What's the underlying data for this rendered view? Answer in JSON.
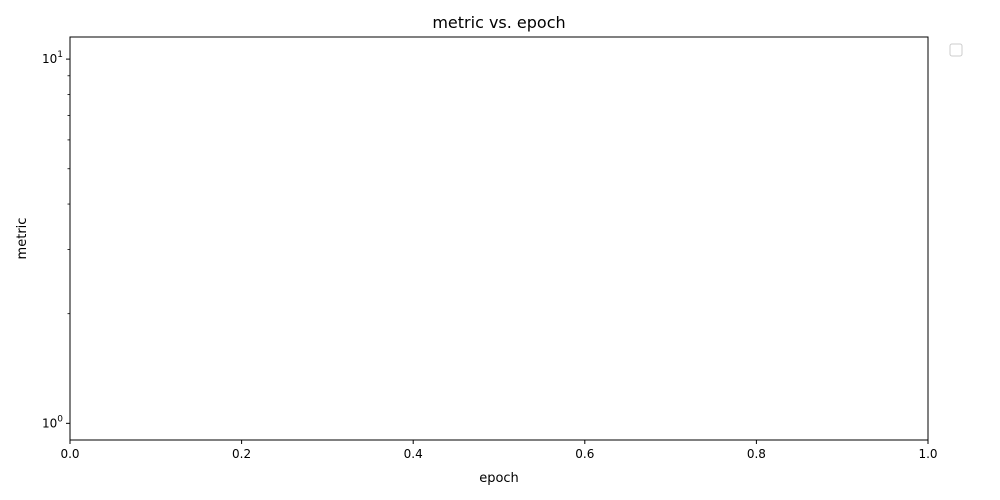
{
  "chart_data": {
    "type": "line",
    "title": "metric vs. epoch",
    "xlabel": "epoch",
    "ylabel": "metric",
    "x_scale": "linear",
    "y_scale": "log",
    "xlim": [
      0,
      1
    ],
    "ylim": [
      0.9,
      11.5
    ],
    "x_ticks": [
      0,
      0.2,
      0.4,
      0.6,
      0.8,
      1
    ],
    "x_tick_labels": [
      "0.0",
      "0.2",
      "0.4",
      "0.6",
      "0.8",
      "1.0"
    ],
    "y_major_ticks": [
      1,
      10
    ],
    "y_minor_ticks": [
      2,
      3,
      4,
      5,
      6,
      7,
      8,
      9
    ],
    "grid": false,
    "legend_position": "outside-upper-right",
    "legend_entries": [],
    "series": []
  }
}
